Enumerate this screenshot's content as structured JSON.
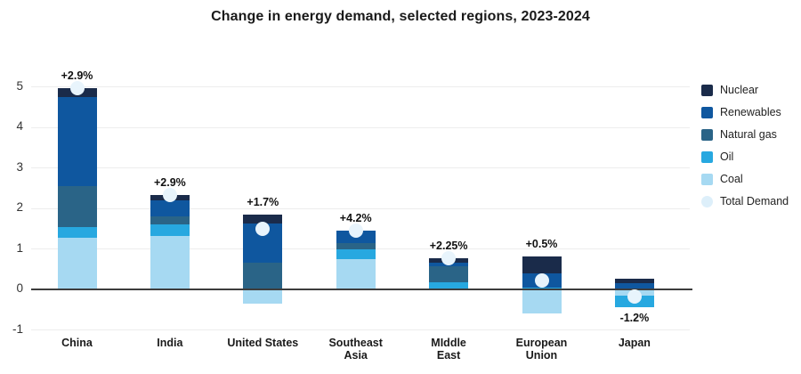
{
  "title": "Change in energy demand, selected regions, 2023-2024",
  "colors": {
    "nuclear": "#1a2b4a",
    "renewables": "#0f579f",
    "natural_gas": "#2a6487",
    "oil": "#27a8e0",
    "coal": "#a6d9f2",
    "total": "#e8f4fc",
    "total_legend": "#ddeffa",
    "grid": "#ededed",
    "zero_line": "#3d3d3d",
    "text": "#1a1a1a"
  },
  "chart_data": {
    "type": "bar",
    "stacked": true,
    "title": "Change in energy demand, selected regions, 2023-2024",
    "categories": [
      "China",
      "India",
      "United States",
      "Southeast\nAsia",
      "MIddle\nEast",
      "European\nUnion",
      "Japan"
    ],
    "series": [
      {
        "name": "Coal",
        "key": "coal",
        "values": [
          1.28,
          1.32,
          -0.35,
          0.75,
          0,
          -0.59,
          -0.16
        ]
      },
      {
        "name": "Oil",
        "key": "oil",
        "values": [
          0.26,
          0.28,
          0,
          0.24,
          0.17,
          0.04,
          -0.29
        ]
      },
      {
        "name": "Natural gas",
        "key": "natural_gas",
        "values": [
          1.0,
          0.2,
          0.65,
          0.15,
          0.41,
          0,
          0
        ]
      },
      {
        "name": "Renewables",
        "key": "renewables",
        "values": [
          2.2,
          0.4,
          0.98,
          0.31,
          0.07,
          0.36,
          0.15
        ]
      },
      {
        "name": "Nuclear",
        "key": "nuclear",
        "values": [
          0.22,
          0.13,
          0.22,
          0,
          0.12,
          0.42,
          0.12
        ]
      }
    ],
    "totals": [
      4.96,
      2.33,
      1.5,
      1.45,
      0.77,
      0.23,
      -0.18
    ],
    "bar_labels": [
      "+2.9%",
      "+2.9%",
      "+1.7%",
      "+4.2%",
      "+2.25%",
      "+0.5%",
      "-1.2%"
    ],
    "bar_label_position": [
      "above",
      "above",
      "above",
      "above",
      "above",
      "above",
      "below"
    ],
    "ylim": [
      -1,
      5
    ],
    "yticks": [
      5,
      4,
      3,
      2,
      1,
      0,
      -1
    ],
    "grid": true,
    "legend_position": "right",
    "legend": [
      {
        "label": "Nuclear",
        "key": "nuclear",
        "shape": "square"
      },
      {
        "label": "Renewables",
        "key": "renewables",
        "shape": "square"
      },
      {
        "label": "Natural gas",
        "key": "natural_gas",
        "shape": "square"
      },
      {
        "label": "Oil",
        "key": "oil",
        "shape": "square"
      },
      {
        "label": "Coal",
        "key": "coal",
        "shape": "square"
      },
      {
        "label": "Total Demand",
        "key": "total_legend",
        "shape": "circle"
      }
    ]
  }
}
